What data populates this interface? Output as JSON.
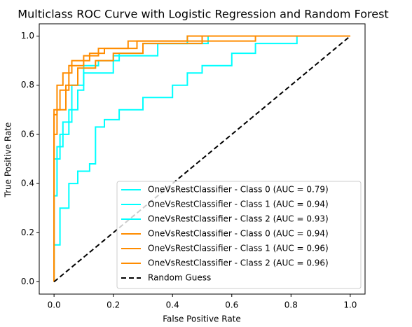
{
  "chart_data": {
    "type": "line",
    "title": "Multiclass ROC Curve with Logistic Regression and Random Forest",
    "x_label": "False Positive Rate",
    "y_label": "True Positive Rate",
    "xlim": [
      -0.05,
      1.05
    ],
    "ylim": [
      -0.05,
      1.05
    ],
    "xticks": [
      {
        "value": 0,
        "label": "0.0"
      },
      0.2,
      0.4,
      0.6,
      0.8,
      {
        "value": 1,
        "label": "1.0"
      }
    ],
    "yticks": [
      {
        "value": 0,
        "label": "0.0"
      },
      0.2,
      0.4,
      0.6,
      0.8,
      {
        "value": 1,
        "label": "1.0"
      }
    ],
    "legend": "lower right",
    "series": [
      {
        "name": "OneVsRestClassifier - Class 0 (AUC = 0.79)",
        "color": "#00ffff",
        "linestyle": "solid",
        "x": [
          0,
          0,
          0.02,
          0.02,
          0.05,
          0.05,
          0.08,
          0.08,
          0.12,
          0.12,
          0.14,
          0.14,
          0.17,
          0.17,
          0.22,
          0.22,
          0.3,
          0.3,
          0.4,
          0.4,
          0.45,
          0.45,
          0.5,
          0.5,
          0.6,
          0.6,
          0.68,
          0.68,
          0.82,
          0.82,
          1
        ],
        "values": [
          0,
          0.15,
          0.15,
          0.3,
          0.3,
          0.4,
          0.4,
          0.45,
          0.45,
          0.48,
          0.48,
          0.63,
          0.63,
          0.66,
          0.66,
          0.7,
          0.7,
          0.75,
          0.75,
          0.8,
          0.8,
          0.85,
          0.85,
          0.88,
          0.88,
          0.93,
          0.93,
          0.97,
          0.97,
          1,
          1
        ]
      },
      {
        "name": "OneVsRestClassifier - Class 1 (AUC = 0.94)",
        "color": "#00ffff",
        "linestyle": "solid",
        "x": [
          0,
          0,
          0.02,
          0.02,
          0.05,
          0.05,
          0.08,
          0.08,
          0.1,
          0.1,
          0.15,
          0.15,
          0.22,
          0.22,
          0.3,
          0.3,
          0.45,
          0.45,
          1
        ],
        "values": [
          0,
          0.5,
          0.5,
          0.6,
          0.6,
          0.7,
          0.7,
          0.78,
          0.78,
          0.88,
          0.88,
          0.9,
          0.9,
          0.93,
          0.93,
          0.97,
          0.97,
          1,
          1
        ]
      },
      {
        "name": "OneVsRestClassifier - Class 2 (AUC = 0.93)",
        "color": "#00ffff",
        "linestyle": "solid",
        "x": [
          0,
          0,
          0.01,
          0.01,
          0.03,
          0.03,
          0.06,
          0.06,
          0.1,
          0.1,
          0.2,
          0.2,
          0.35,
          0.35,
          0.52,
          0.52,
          1
        ],
        "values": [
          0,
          0.35,
          0.35,
          0.55,
          0.55,
          0.65,
          0.65,
          0.8,
          0.8,
          0.85,
          0.85,
          0.92,
          0.92,
          0.97,
          0.97,
          1,
          1
        ]
      },
      {
        "name": "OneVsRestClassifier - Class 0 (AUC = 0.94)",
        "color": "#ff8c00",
        "linestyle": "solid",
        "x": [
          0,
          0,
          0.01,
          0.01,
          0.04,
          0.04,
          0.08,
          0.08,
          0.14,
          0.14,
          0.2,
          0.2,
          0.3,
          0.3,
          0.5,
          0.5,
          0.68,
          0.68,
          1
        ],
        "values": [
          0,
          0.6,
          0.6,
          0.7,
          0.7,
          0.8,
          0.8,
          0.87,
          0.87,
          0.9,
          0.9,
          0.93,
          0.93,
          0.97,
          0.97,
          0.98,
          0.98,
          1,
          1
        ]
      },
      {
        "name": "OneVsRestClassifier - Class 1 (AUC = 0.96)",
        "color": "#ff8c00",
        "linestyle": "solid",
        "x": [
          0,
          0,
          0.01,
          0.01,
          0.03,
          0.03,
          0.06,
          0.06,
          0.12,
          0.12,
          0.17,
          0.17,
          0.28,
          0.28,
          0.45,
          0.45,
          1
        ],
        "values": [
          0,
          0.68,
          0.68,
          0.8,
          0.8,
          0.85,
          0.85,
          0.9,
          0.9,
          0.93,
          0.93,
          0.95,
          0.95,
          0.98,
          0.98,
          1,
          1
        ]
      },
      {
        "name": "OneVsRestClassifier - Class 2 (AUC = 0.96)",
        "color": "#ff8c00",
        "linestyle": "solid",
        "x": [
          0,
          0,
          0.02,
          0.02,
          0.05,
          0.05,
          0.1,
          0.1,
          0.15,
          0.15,
          0.25,
          0.25,
          0.5,
          0.5,
          1
        ],
        "values": [
          0,
          0.7,
          0.7,
          0.78,
          0.78,
          0.88,
          0.88,
          0.92,
          0.92,
          0.95,
          0.95,
          0.98,
          0.98,
          1,
          1
        ]
      },
      {
        "name": "Random Guess",
        "color": "#000000",
        "linestyle": "dashed",
        "x": [
          0,
          1
        ],
        "values": [
          0,
          1
        ]
      }
    ]
  }
}
